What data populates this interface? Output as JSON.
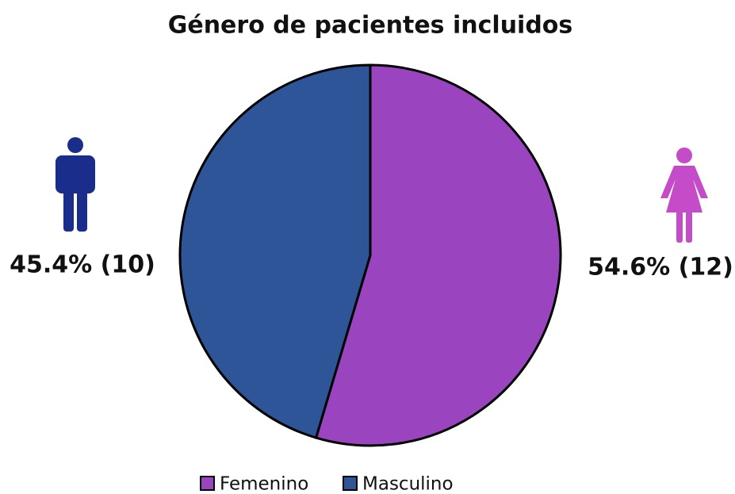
{
  "chart_data": {
    "type": "pie",
    "title": "Género de pacientes incluidos",
    "categories": [
      "Femenino",
      "Masculino"
    ],
    "values": [
      54.6,
      45.4
    ],
    "value_labels": [
      "54.6% (12)",
      "45.4% (10)"
    ],
    "colors": [
      "#9b44bf",
      "#2e5597"
    ],
    "legend": "bottom"
  }
}
